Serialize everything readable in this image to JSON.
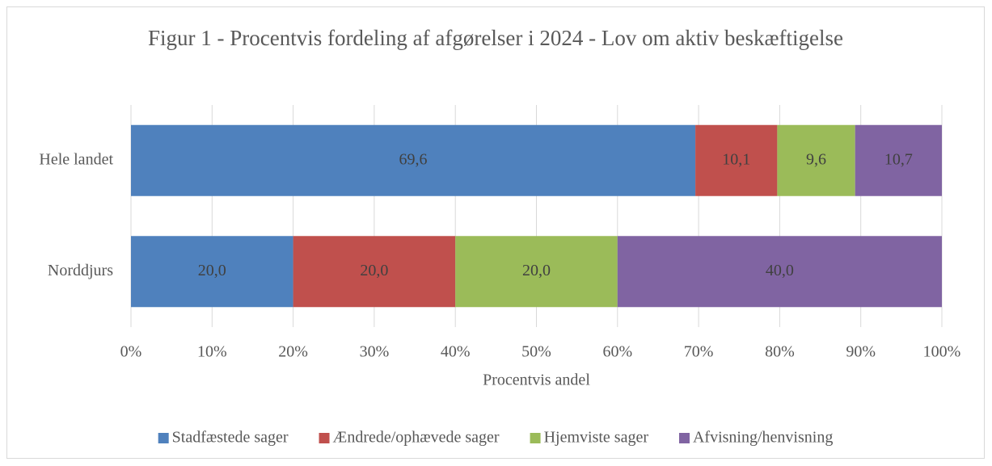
{
  "chart_data": {
    "type": "stacked_barh",
    "title": "Figur 1 - Procentvis fordeling af afgørelser i 2024 - Lov om aktiv beskæftigelse",
    "x_label": "Procentvis andel",
    "categories": [
      "Hele landet",
      "Norddjurs"
    ],
    "series": [
      {
        "name": "Stadfæstede sager",
        "color": "#4f81bd",
        "values": [
          69.6,
          20.0
        ],
        "value_labels": [
          "69,6",
          "20,0"
        ]
      },
      {
        "name": "Ændrede/ophævede sager",
        "color": "#c0504d",
        "values": [
          10.1,
          20.0
        ],
        "value_labels": [
          "10,1",
          "20,0"
        ]
      },
      {
        "name": "Hjemviste sager",
        "color": "#9bbb59",
        "values": [
          9.6,
          20.0
        ],
        "value_labels": [
          "9,6",
          "20,0"
        ]
      },
      {
        "name": "Afvisning/henvisning",
        "color": "#8064a2",
        "values": [
          10.7,
          40.0
        ],
        "value_labels": [
          "10,7",
          "40,0"
        ]
      }
    ],
    "xlim": [
      0,
      100
    ],
    "xticks": [
      {
        "value": 0,
        "label": "0%"
      },
      {
        "value": 10,
        "label": "10%"
      },
      {
        "value": 20,
        "label": "20%"
      },
      {
        "value": 30,
        "label": "30%"
      },
      {
        "value": 40,
        "label": "40%"
      },
      {
        "value": 50,
        "label": "50%"
      },
      {
        "value": 60,
        "label": "60%"
      },
      {
        "value": 70,
        "label": "70%"
      },
      {
        "value": 80,
        "label": "80%"
      },
      {
        "value": 90,
        "label": "90%"
      },
      {
        "value": 100,
        "label": "100%"
      }
    ],
    "grid": true,
    "legend": "bottom"
  }
}
